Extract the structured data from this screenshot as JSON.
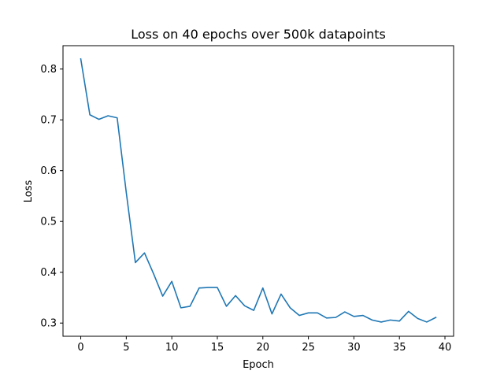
{
  "chart_data": {
    "type": "line",
    "title": "Loss on 40 epochs over 500k datapoints",
    "xlabel": "Epoch",
    "ylabel": "Loss",
    "xlim": [
      -1.95,
      40.95
    ],
    "ylim": [
      0.274,
      0.846
    ],
    "xticks": [
      0,
      5,
      10,
      15,
      20,
      25,
      30,
      35,
      40
    ],
    "yticks": [
      0.3,
      0.4,
      0.5,
      0.6,
      0.7,
      0.8
    ],
    "ytick_labels": [
      "0.3",
      "0.4",
      "0.5",
      "0.6",
      "0.7",
      "0.8"
    ],
    "grid": false,
    "series": [
      {
        "color": "#1f77b4",
        "x": [
          0,
          1,
          2,
          3,
          4,
          5,
          6,
          7,
          8,
          9,
          10,
          11,
          12,
          13,
          14,
          15,
          16,
          17,
          18,
          19,
          20,
          21,
          22,
          23,
          24,
          25,
          26,
          27,
          28,
          29,
          30,
          31,
          32,
          33,
          34,
          35,
          36,
          37,
          38,
          39
        ],
        "y": [
          0.82,
          0.71,
          0.701,
          0.708,
          0.704,
          0.557,
          0.419,
          0.438,
          0.397,
          0.353,
          0.382,
          0.33,
          0.333,
          0.369,
          0.37,
          0.37,
          0.333,
          0.354,
          0.334,
          0.325,
          0.369,
          0.318,
          0.357,
          0.33,
          0.315,
          0.32,
          0.32,
          0.31,
          0.311,
          0.322,
          0.313,
          0.315,
          0.306,
          0.302,
          0.306,
          0.304,
          0.323,
          0.309,
          0.302,
          0.311
        ]
      }
    ]
  }
}
